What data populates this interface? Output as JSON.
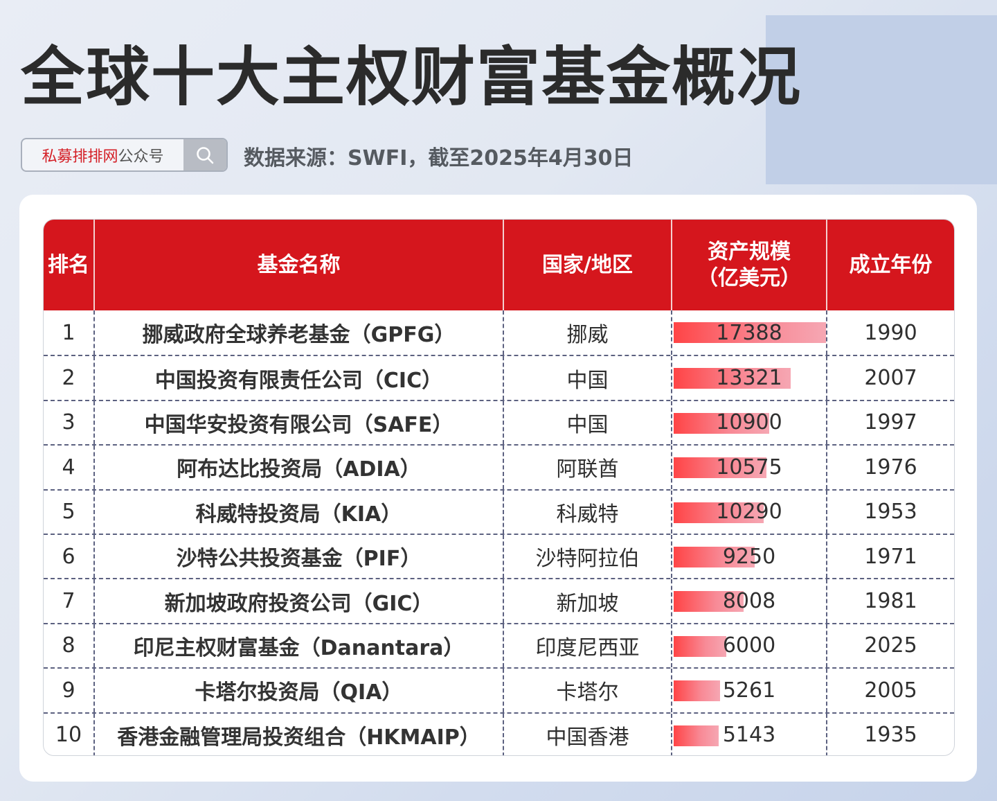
{
  "header": {
    "title": "全球十大主权财富基金概况",
    "badge_brand": "私募排排网",
    "badge_suffix": "公众号",
    "source": "数据来源：SWFI，截至2025年4月30日"
  },
  "table": {
    "columns": [
      "排名",
      "基金名称",
      "国家/地区",
      "资产规模\n（亿美元）",
      "成立年份"
    ],
    "col_asset_line1": "资产规模",
    "col_asset_line2": "（亿美元）",
    "max_asset": 17388,
    "rows": [
      {
        "rank": "1",
        "name": "挪威政府全球养老基金（GPFG）",
        "country": "挪威",
        "asset": "17388",
        "year": "1990"
      },
      {
        "rank": "2",
        "name": "中国投资有限责任公司（CIC）",
        "country": "中国",
        "asset": "13321",
        "year": "2007"
      },
      {
        "rank": "3",
        "name": "中国华安投资有限公司（SAFE）",
        "country": "中国",
        "asset": "10900",
        "year": "1997"
      },
      {
        "rank": "4",
        "name": "阿布达比投资局（ADIA）",
        "country": "阿联酋",
        "asset": "10575",
        "year": "1976"
      },
      {
        "rank": "5",
        "name": "科威特投资局（KIA）",
        "country": "科威特",
        "asset": "10290",
        "year": "1953"
      },
      {
        "rank": "6",
        "name": "沙特公共投资基金（PIF）",
        "country": "沙特阿拉伯",
        "asset": "9250",
        "year": "1971"
      },
      {
        "rank": "7",
        "name": "新加坡政府投资公司（GIC）",
        "country": "新加坡",
        "asset": "8008",
        "year": "1981"
      },
      {
        "rank": "8",
        "name": "印尼主权财富基金（Danantara）",
        "country": "印度尼西亚",
        "asset": "6000",
        "year": "2025"
      },
      {
        "rank": "9",
        "name": "卡塔尔投资局（QIA）",
        "country": "卡塔尔",
        "asset": "5261",
        "year": "2005"
      },
      {
        "rank": "10",
        "name": "香港金融管理局投资组合（HKMAIP）",
        "country": "中国香港",
        "asset": "5143",
        "year": "1935"
      }
    ]
  },
  "colors": {
    "header_red": "#d5161d",
    "bar_start": "#ff4446",
    "bar_end": "#f6a7b3",
    "brand_red": "#d41f26"
  },
  "chart_data": {
    "type": "table",
    "title": "全球十大主权财富基金概况",
    "subtitle": "数据来源：SWFI，截至2025年4月30日",
    "columns": [
      "排名",
      "基金名称",
      "国家/地区",
      "资产规模（亿美元）",
      "成立年份"
    ],
    "categories": [
      "GPFG",
      "CIC",
      "SAFE",
      "ADIA",
      "KIA",
      "PIF",
      "GIC",
      "Danantara",
      "QIA",
      "HKMAIP"
    ],
    "series": [
      {
        "name": "资产规模（亿美元）",
        "values": [
          17388,
          13321,
          10900,
          10575,
          10290,
          9250,
          8008,
          6000,
          5261,
          5143
        ]
      },
      {
        "name": "成立年份",
        "values": [
          1990,
          2007,
          1997,
          1976,
          1953,
          1971,
          1981,
          2025,
          2005,
          1935
        ]
      }
    ],
    "rows": [
      [
        1,
        "挪威政府全球养老基金（GPFG）",
        "挪威",
        17388,
        1990
      ],
      [
        2,
        "中国投资有限责任公司（CIC）",
        "中国",
        13321,
        2007
      ],
      [
        3,
        "中国华安投资有限公司（SAFE）",
        "中国",
        10900,
        1997
      ],
      [
        4,
        "阿布达比投资局（ADIA）",
        "阿联酋",
        10575,
        1976
      ],
      [
        5,
        "科威特投资局（KIA）",
        "科威特",
        10290,
        1953
      ],
      [
        6,
        "沙特公共投资基金（PIF）",
        "沙特阿拉伯",
        9250,
        1971
      ],
      [
        7,
        "新加坡政府投资公司（GIC）",
        "新加坡",
        8008,
        1981
      ],
      [
        8,
        "印尼主权财富基金（Danantara）",
        "印度尼西亚",
        6000,
        2025
      ],
      [
        9,
        "卡塔尔投资局（QIA）",
        "卡塔尔",
        5261,
        2005
      ],
      [
        10,
        "香港金融管理局投资组合（HKMAIP）",
        "中国香港",
        5143,
        1935
      ]
    ],
    "inline_bars": {
      "column": "资产规模（亿美元）",
      "max": 17388
    }
  }
}
